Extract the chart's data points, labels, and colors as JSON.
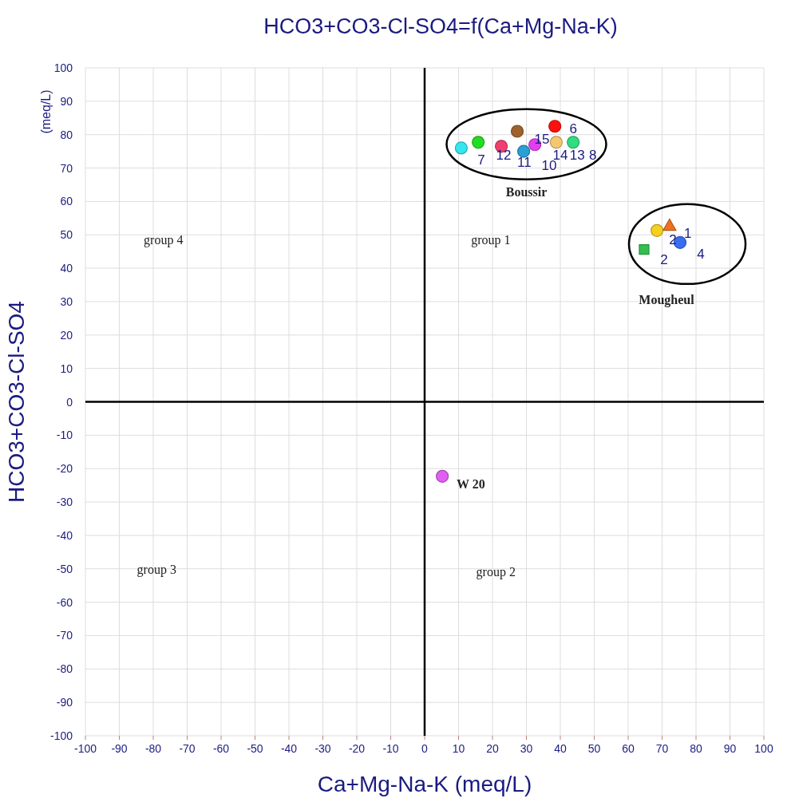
{
  "chart_data": {
    "type": "scatter",
    "title": "HCO3+CO3-Cl-SO4=f(Ca+Mg-Na-K)",
    "xlabel": "Ca+Mg-Na-K (meq/L)",
    "ylabel": "HCO3+CO3-Cl-SO4",
    "y2label": "(meq/L)",
    "xlim": [
      -100,
      100
    ],
    "ylim": [
      -100,
      100
    ],
    "xticks": [
      -100,
      -90,
      -80,
      -70,
      -60,
      -50,
      -40,
      -30,
      -20,
      -10,
      0,
      10,
      20,
      30,
      40,
      50,
      60,
      70,
      80,
      90,
      100
    ],
    "yticks": [
      -100,
      -90,
      -80,
      -70,
      -60,
      -50,
      -40,
      -30,
      -20,
      -10,
      0,
      10,
      20,
      30,
      40,
      50,
      60,
      70,
      80,
      90,
      100
    ],
    "grid": true,
    "series": [
      {
        "marker": "circle",
        "x": [
          10.8,
          15.8,
          22.6,
          27.3,
          29.2,
          32.5,
          38.4,
          38.8,
          43.8,
          5.2
        ],
        "values": [
          76,
          77.7,
          76.5,
          81,
          75,
          77,
          82.5,
          77.7,
          77.7,
          -22.3
        ],
        "colors": [
          "#33e6f0",
          "#22dd22",
          "#f04070",
          "#a0622d",
          "#2a9fd6",
          "#e040f0",
          "#ff1010",
          "#f5c870",
          "#30dd80",
          "#e060f0"
        ]
      },
      {
        "marker": "circle",
        "x": [
          68.5,
          75.3
        ],
        "values": [
          51.3,
          47.7
        ],
        "colors": [
          "#f5d020",
          "#3a6ef0"
        ]
      },
      {
        "marker": "triangle",
        "x": [
          72.2
        ],
        "values": [
          52.8
        ],
        "colors": [
          "#f07020"
        ]
      },
      {
        "marker": "square",
        "x": [
          64.7
        ],
        "values": [
          45.6
        ],
        "colors": [
          "#30c050"
        ]
      }
    ],
    "annotations": [
      "group 4",
      "group 1",
      "group 3",
      "group 2",
      "Boussir",
      "Mougheul",
      "W 20",
      "7",
      "12",
      "11",
      "15",
      "10",
      "14",
      "13",
      "8",
      "6",
      "2",
      "1",
      "4",
      "2"
    ]
  }
}
